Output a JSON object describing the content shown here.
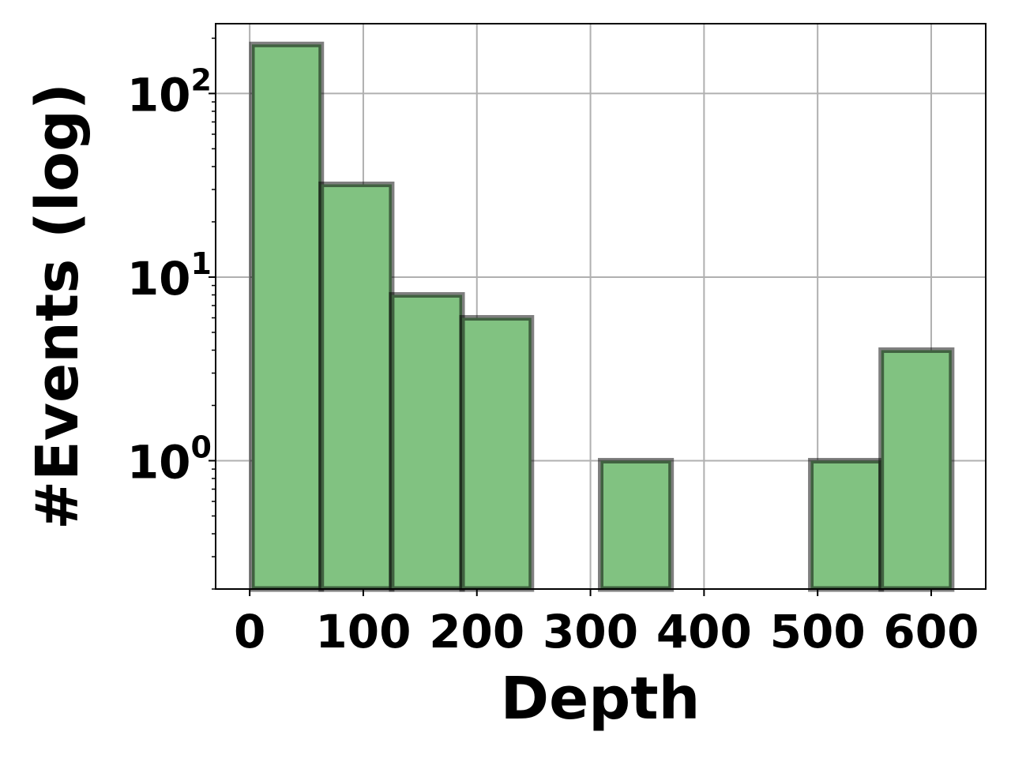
{
  "chart_data": {
    "type": "bar",
    "xlabel": "Depth",
    "ylabel": "#Events (log)",
    "yscale": "log",
    "xlim": [
      -30,
      648
    ],
    "ylim": [
      0.2,
      240
    ],
    "grid": true,
    "colors": {
      "bar_fill": "#81c281",
      "bar_edge": "#000000",
      "grid": "#b0b0b0"
    },
    "bins": [
      {
        "x0": 2,
        "x1": 63,
        "value": 185
      },
      {
        "x0": 63,
        "x1": 125,
        "value": 32
      },
      {
        "x0": 125,
        "x1": 187,
        "value": 8
      },
      {
        "x0": 187,
        "x1": 248,
        "value": 6
      },
      {
        "x0": 309,
        "x1": 371,
        "value": 1
      },
      {
        "x0": 494,
        "x1": 556,
        "value": 1
      },
      {
        "x0": 556,
        "x1": 618,
        "value": 4
      }
    ],
    "xticks": [
      {
        "value": 0,
        "label": "0"
      },
      {
        "value": 100,
        "label": "100"
      },
      {
        "value": 200,
        "label": "200"
      },
      {
        "value": 300,
        "label": "300"
      },
      {
        "value": 400,
        "label": "400"
      },
      {
        "value": 500,
        "label": "500"
      },
      {
        "value": 600,
        "label": "600"
      }
    ],
    "yticks": [
      {
        "value": 1,
        "base": "10",
        "exp": "0"
      },
      {
        "value": 10,
        "base": "10",
        "exp": "1"
      },
      {
        "value": 100,
        "base": "10",
        "exp": "2"
      }
    ]
  }
}
